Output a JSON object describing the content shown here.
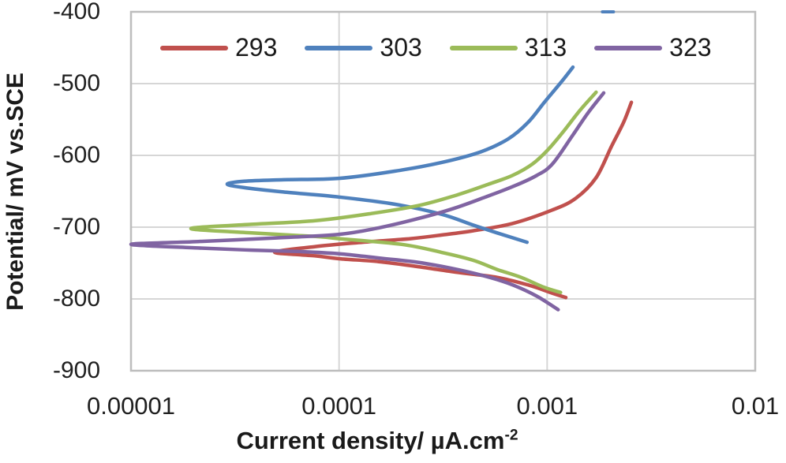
{
  "chart_data": {
    "type": "line",
    "title": "",
    "xlabel_main": "Current density/ µA.cm",
    "xlabel_sup": "-2",
    "ylabel": "Potential/ mV vs.SCE",
    "x_axis": {
      "scale": "log",
      "min": 1e-05,
      "max": 0.01,
      "tick_values": [
        1e-05,
        0.0001,
        0.001,
        0.01
      ],
      "tick_labels": [
        "0.00001",
        "0.0001",
        "0.001",
        "0.01"
      ]
    },
    "y_axis": {
      "scale": "linear",
      "min": -900,
      "max": -400,
      "tick_values": [
        -400,
        -500,
        -600,
        -700,
        -800,
        -900
      ],
      "tick_labels": [
        "-400",
        "-500",
        "-600",
        "-700",
        "-800",
        "-900"
      ]
    },
    "legend": {
      "position": "top-inside",
      "entries": [
        "293",
        "303",
        "313",
        "323"
      ]
    },
    "style": {
      "grid_color": "#d6d6d6",
      "border_color": "#bdbdbd",
      "text_color": "#1f1f1f",
      "background": "#ffffff"
    },
    "series": [
      {
        "name": "293",
        "color": "#c0504d",
        "points": [
          [
            0.00123,
            -798
          ],
          [
            0.00106,
            -792
          ],
          [
            0.00082,
            -781
          ],
          [
            0.000575,
            -770
          ],
          [
            0.00037,
            -763
          ],
          [
            0.00024,
            -755
          ],
          [
            0.000155,
            -748
          ],
          [
            0.0001,
            -744
          ],
          [
            7.7e-05,
            -740
          ],
          [
            4.9e-05,
            -735
          ],
          [
            7.7e-05,
            -727
          ],
          [
            0.00013,
            -721
          ],
          [
            0.00022,
            -716
          ],
          [
            0.00031,
            -711
          ],
          [
            0.00044,
            -705
          ],
          [
            0.00068,
            -695
          ],
          [
            0.00106,
            -676
          ],
          [
            0.00137,
            -660
          ],
          [
            0.00172,
            -631
          ],
          [
            0.00204,
            -587
          ],
          [
            0.00233,
            -554
          ],
          [
            0.00254,
            -526
          ]
        ]
      },
      {
        "name": "303",
        "color": "#4f81bd",
        "points": [
          [
            0.0008,
            -721
          ],
          [
            0.000575,
            -708
          ],
          [
            0.00044,
            -697
          ],
          [
            0.00031,
            -682
          ],
          [
            0.000185,
            -668
          ],
          [
            0.0001,
            -658
          ],
          [
            5.4e-05,
            -651
          ],
          [
            3.5e-05,
            -645
          ],
          [
            2.9e-05,
            -640
          ],
          [
            3.5e-05,
            -636
          ],
          [
            5.4e-05,
            -634
          ],
          [
            0.0001,
            -632
          ],
          [
            0.000185,
            -622
          ],
          [
            0.00031,
            -610
          ],
          [
            0.00048,
            -595
          ],
          [
            0.00065,
            -577
          ],
          [
            0.00081,
            -554
          ],
          [
            0.00097,
            -526
          ],
          [
            0.00116,
            -499
          ],
          [
            0.00133,
            -477
          ]
        ]
      },
      {
        "name": "313",
        "color": "#9bbb59",
        "points": [
          [
            0.00116,
            -791
          ],
          [
            0.00097,
            -784
          ],
          [
            0.00075,
            -770
          ],
          [
            0.000575,
            -759
          ],
          [
            0.00044,
            -746
          ],
          [
            0.00031,
            -735
          ],
          [
            0.0002,
            -724
          ],
          [
            0.0001,
            -716
          ],
          [
            7.7e-05,
            -713
          ],
          [
            3.8e-05,
            -708
          ],
          [
            1.94e-05,
            -702
          ],
          [
            3.8e-05,
            -696
          ],
          [
            7.7e-05,
            -691
          ],
          [
            0.000143,
            -681
          ],
          [
            0.00024,
            -670
          ],
          [
            0.00037,
            -655
          ],
          [
            0.000525,
            -640
          ],
          [
            0.00068,
            -628
          ],
          [
            0.00085,
            -612
          ],
          [
            0.00101,
            -592
          ],
          [
            0.00121,
            -565
          ],
          [
            0.00144,
            -537
          ],
          [
            0.00172,
            -512
          ]
        ]
      },
      {
        "name": "323",
        "color": "#8064a2",
        "points": [
          [
            0.00113,
            -815
          ],
          [
            0.00089,
            -796
          ],
          [
            0.00069,
            -781
          ],
          [
            0.00053,
            -770
          ],
          [
            0.00037,
            -759
          ],
          [
            0.00024,
            -749
          ],
          [
            0.000155,
            -743
          ],
          [
            0.0001,
            -737
          ],
          [
            6.5e-05,
            -734
          ],
          [
            3.8e-05,
            -732
          ],
          [
            2.1e-05,
            -729
          ],
          [
            1e-05,
            -724
          ],
          [
            2.1e-05,
            -720
          ],
          [
            5e-05,
            -715
          ],
          [
            0.0001,
            -710
          ],
          [
            0.000155,
            -701
          ],
          [
            0.00024,
            -688
          ],
          [
            0.000355,
            -674
          ],
          [
            0.000505,
            -658
          ],
          [
            0.00069,
            -643
          ],
          [
            0.00089,
            -628
          ],
          [
            0.00106,
            -612
          ],
          [
            0.00132,
            -573
          ],
          [
            0.00157,
            -541
          ],
          [
            0.00187,
            -513
          ]
        ]
      }
    ],
    "annotations": [
      {
        "name": "clipped-blue-segment",
        "x": 0.00196,
        "y": -400,
        "color": "#4f81bd"
      }
    ]
  }
}
